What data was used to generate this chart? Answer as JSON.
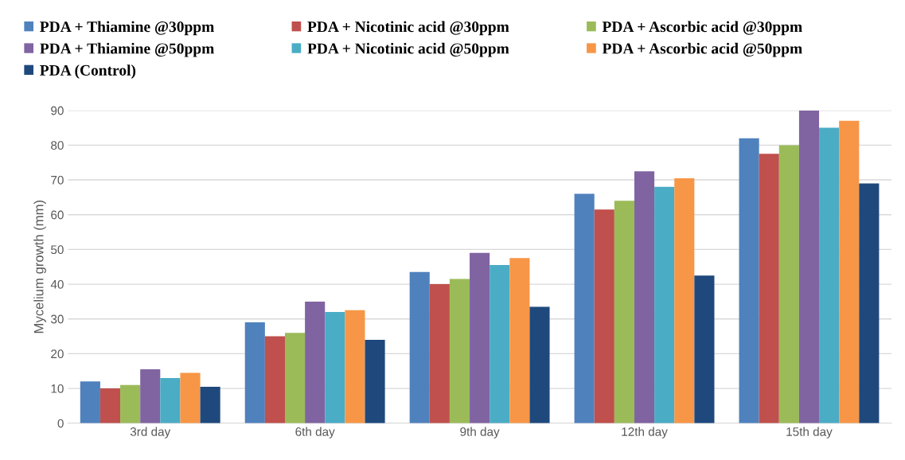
{
  "chart_data": {
    "type": "bar",
    "ylabel": "Mycelium growth (mm)",
    "categories": [
      "3rd day",
      "6th day",
      "9th day",
      "12th day",
      "15th day"
    ],
    "series": [
      {
        "name": "PDA + Thiamine @30ppm",
        "color": "#4f81bd",
        "values": [
          12,
          29,
          43.5,
          66,
          82
        ]
      },
      {
        "name": "PDA + Nicotinic acid @30ppm",
        "color": "#c0504d",
        "values": [
          10,
          25,
          40,
          61.5,
          77.5
        ]
      },
      {
        "name": "PDA + Ascorbic acid @30ppm",
        "color": "#9bbb59",
        "values": [
          11,
          26,
          41.5,
          64,
          80
        ]
      },
      {
        "name": "PDA + Thiamine @50ppm",
        "color": "#8064a2",
        "values": [
          15.5,
          35,
          49,
          72.5,
          90
        ]
      },
      {
        "name": "PDA + Nicotinic acid @50ppm",
        "color": "#4bacc6",
        "values": [
          13,
          32,
          45.5,
          68,
          85
        ]
      },
      {
        "name": "PDA + Ascorbic acid @50ppm",
        "color": "#f79646",
        "values": [
          14.5,
          32.5,
          47.5,
          70.5,
          87
        ]
      },
      {
        "name": "PDA (Control)",
        "color": "#1f497d",
        "values": [
          10.5,
          24,
          33.5,
          42.5,
          69
        ]
      }
    ],
    "ylim": [
      0,
      90
    ],
    "yticks": [
      0,
      10,
      20,
      30,
      40,
      50,
      60,
      70,
      80,
      90
    ],
    "grid": "y",
    "legend": "top"
  }
}
